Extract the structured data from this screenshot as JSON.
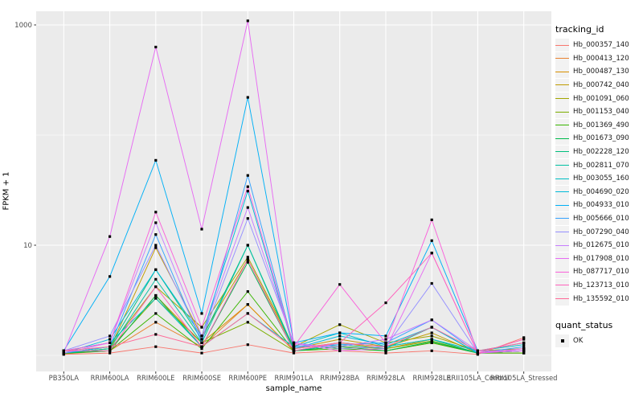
{
  "figure": {
    "background": "#FFFFFF",
    "panel_background": "#EBEBEB",
    "grid_color": "#FFFFFF",
    "tick_color": "#333333",
    "tick_label_color": "#4D4D4D",
    "marker_color": "#000000"
  },
  "legends": {
    "tracking": {
      "title": "tracking_id"
    },
    "quant": {
      "title": "quant_status",
      "items": [
        {
          "label": "OK",
          "glyph": "black-square-point"
        }
      ]
    }
  },
  "chart_data": {
    "type": "line",
    "title": "",
    "xlabel": "sample_name",
    "ylabel": "FPKM + 1",
    "yscale": "log10",
    "y_tick_labels": [
      "1000",
      "10"
    ],
    "y_tick_values": [
      1000,
      10
    ],
    "y_minor_grid_values": [
      100,
      1
    ],
    "ylim": [
      0.7,
      1300
    ],
    "legend_position": "right",
    "grid": "on",
    "marker": "black-square",
    "categories": [
      "PB350LA",
      "RRIM600LA",
      "RRIM600LE",
      "RRIM600SE",
      "RRIM600PE",
      "RRIM901LA",
      "RRIM928BA",
      "RRIM928LA",
      "RRIM928LE",
      "RRII105LA_Control",
      "RRII105LA_Stressed"
    ],
    "series": [
      {
        "name": "Hb_000357_140",
        "color": "#F8766D",
        "values": [
          1.02,
          1.05,
          1.2,
          1.05,
          1.25,
          1.05,
          1.1,
          1.05,
          1.1,
          1.02,
          1.45
        ]
      },
      {
        "name": "Hb_000413_120",
        "color": "#EA8331",
        "values": [
          1.03,
          1.1,
          2.0,
          1.2,
          2.9,
          1.1,
          1.2,
          1.1,
          1.3,
          1.05,
          1.05
        ]
      },
      {
        "name": "Hb_000487_130",
        "color": "#D89000",
        "values": [
          1.05,
          1.1,
          3.5,
          1.3,
          2.9,
          1.1,
          1.3,
          1.15,
          1.4,
          1.05,
          1.1
        ]
      },
      {
        "name": "Hb_000742_040",
        "color": "#C09B00",
        "values": [
          1.05,
          1.15,
          9.5,
          1.5,
          7.4,
          1.15,
          1.4,
          1.2,
          1.6,
          1.05,
          1.1
        ]
      },
      {
        "name": "Hb_001091_060",
        "color": "#A3A500",
        "values": [
          1.05,
          1.2,
          4.2,
          1.8,
          7.8,
          1.2,
          1.9,
          1.3,
          1.5,
          1.1,
          1.15
        ]
      },
      {
        "name": "Hb_001153_040",
        "color": "#7CAE00",
        "values": [
          1.05,
          1.15,
          3.3,
          1.3,
          2.0,
          1.1,
          1.2,
          1.15,
          1.35,
          1.05,
          1.1
        ]
      },
      {
        "name": "Hb_001369_490",
        "color": "#39B600",
        "values": [
          1.04,
          1.1,
          2.4,
          1.15,
          3.8,
          1.1,
          1.15,
          1.1,
          1.3,
          1.05,
          1.05
        ]
      },
      {
        "name": "Hb_001673_090",
        "color": "#00BB4E",
        "values": [
          1.05,
          1.1,
          3.5,
          1.2,
          7.0,
          1.1,
          1.2,
          1.1,
          1.33,
          1.05,
          1.1
        ]
      },
      {
        "name": "Hb_002228_120",
        "color": "#00BF7D",
        "values": [
          1.05,
          1.2,
          6.0,
          1.4,
          10,
          1.15,
          1.3,
          1.2,
          1.4,
          1.05,
          1.1
        ]
      },
      {
        "name": "Hb_002811_070",
        "color": "#00C1A3",
        "values": [
          1.05,
          1.15,
          4.9,
          1.3,
          10,
          1.1,
          1.25,
          1.15,
          1.8,
          1.05,
          1.1
        ]
      },
      {
        "name": "Hb_003055_160",
        "color": "#00BFC4",
        "values": [
          1.1,
          1.3,
          3.3,
          1.2,
          2.4,
          1.2,
          1.6,
          1.2,
          1.4,
          1.1,
          1.25
        ]
      },
      {
        "name": "Hb_004690_020",
        "color": "#00BBDA",
        "values": [
          1.05,
          1.4,
          6.0,
          1.5,
          31,
          1.15,
          1.5,
          1.25,
          1.8,
          1.05,
          1.15
        ]
      },
      {
        "name": "Hb_004933_010",
        "color": "#00B0F6",
        "values": [
          1.1,
          5.2,
          59,
          2.4,
          220,
          1.3,
          1.6,
          1.5,
          11,
          1.1,
          1.3
        ]
      },
      {
        "name": "Hb_005666_010",
        "color": "#35A2FF",
        "values": [
          1.05,
          1.2,
          12.5,
          1.3,
          43,
          1.2,
          1.25,
          1.3,
          2.1,
          1.05,
          1.2
        ]
      },
      {
        "name": "Hb_007290_040",
        "color": "#9590FF",
        "values": [
          1.1,
          1.5,
          10,
          1.4,
          17.5,
          1.3,
          1.15,
          1.2,
          4.5,
          1.05,
          1.15
        ]
      },
      {
        "name": "Hb_012675_010",
        "color": "#C77CFF",
        "values": [
          1.05,
          1.3,
          16,
          1.5,
          22,
          1.25,
          1.2,
          1.4,
          2.1,
          1.1,
          1.1
        ]
      },
      {
        "name": "Hb_017908_010",
        "color": "#E76BF3",
        "values": [
          1.05,
          12,
          630,
          14,
          1090,
          1.3,
          1.1,
          1.15,
          8.5,
          1.05,
          1.1
        ]
      },
      {
        "name": "Hb_087717_010",
        "color": "#FA62DB",
        "values": [
          1.1,
          1.3,
          20,
          1.8,
          34,
          1.2,
          4.4,
          1.3,
          17,
          1.05,
          1.15
        ]
      },
      {
        "name": "Hb_123713_010",
        "color": "#FF62BC",
        "values": [
          1.1,
          1.1,
          4.2,
          1.2,
          7.4,
          1.1,
          1.3,
          3.0,
          8.5,
          1.05,
          1.4
        ]
      },
      {
        "name": "Hb_135592_010",
        "color": "#FF6A98",
        "values": [
          1.1,
          1.2,
          1.55,
          1.2,
          2.4,
          1.15,
          1.3,
          1.2,
          1.8,
          1.1,
          1.3
        ]
      }
    ]
  }
}
